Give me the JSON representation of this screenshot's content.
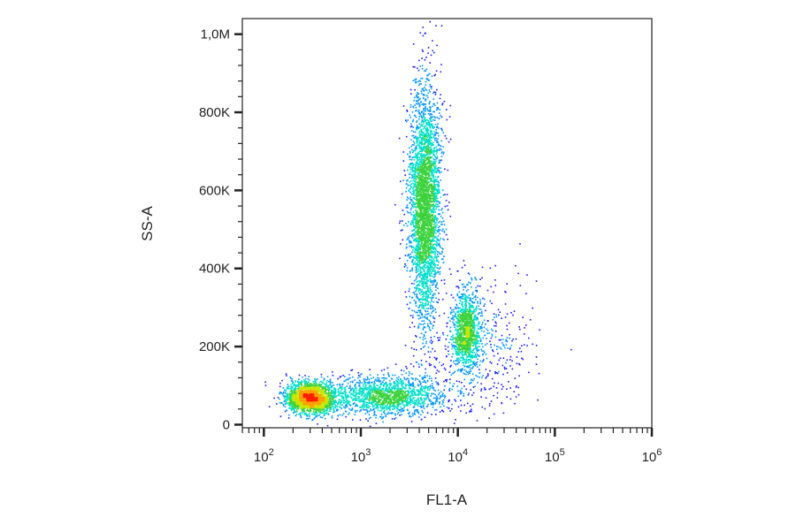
{
  "chart_data": {
    "type": "scatter",
    "title": "",
    "xlabel": "FL1-A",
    "ylabel": "SS-A",
    "x_scale": "log",
    "y_scale": "linear",
    "xlim": [
      60,
      1000000
    ],
    "ylim": [
      -8000,
      1040000
    ],
    "grid": false,
    "legend": "none",
    "x_ticks": [
      {
        "base": "10",
        "exp": "2",
        "value": 100
      },
      {
        "base": "10",
        "exp": "3",
        "value": 1000
      },
      {
        "base": "10",
        "exp": "4",
        "value": 10000
      },
      {
        "base": "10",
        "exp": "5",
        "value": 100000
      },
      {
        "base": "10",
        "exp": "6",
        "value": 1000000
      }
    ],
    "y_ticks": [
      {
        "label": "0",
        "value": 0
      },
      {
        "label": "200K",
        "value": 200000
      },
      {
        "label": "400K",
        "value": 400000
      },
      {
        "label": "600K",
        "value": 600000
      },
      {
        "label": "800K",
        "value": 800000
      },
      {
        "label": "1,0M",
        "value": 1000000
      }
    ],
    "colormap": [
      "#1a1aff",
      "#0096ff",
      "#00e0c8",
      "#3cd23c",
      "#c8e600",
      "#ffa000",
      "#ff1e00"
    ],
    "populations": [
      {
        "x_center": 300,
        "x_spread_log10": 0.13,
        "y_center": 70000,
        "y_spread": 20000,
        "share": 0.24
      },
      {
        "x_center": 1800,
        "x_spread_log10": 0.3,
        "y_center": 75000,
        "y_spread": 25000,
        "share": 0.18
      },
      {
        "x_center": 4500,
        "x_spread_log10": 0.08,
        "y_center": 560000,
        "y_spread": 150000,
        "share": 0.4
      },
      {
        "x_center": 12000,
        "x_spread_log10": 0.07,
        "y_center": 240000,
        "y_spread": 50000,
        "share": 0.13
      },
      {
        "x_center": 18000,
        "x_spread_log10": 0.25,
        "y_center": 200000,
        "y_spread": 90000,
        "share": 0.05
      }
    ]
  }
}
